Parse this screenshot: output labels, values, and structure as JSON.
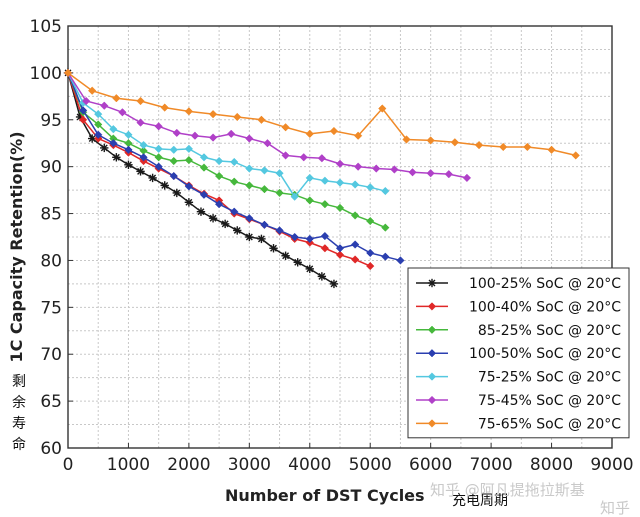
{
  "chart_data": {
    "type": "line",
    "title": "",
    "xlabel": "Number of DST Cycles",
    "ylabel": "1C Capacity Retention(%)",
    "xlim": [
      0,
      9000
    ],
    "ylim": [
      60,
      105
    ],
    "xticks": [
      0,
      1000,
      2000,
      3000,
      4000,
      5000,
      6000,
      7000,
      8000,
      9000
    ],
    "yticks": [
      60,
      65,
      70,
      75,
      80,
      85,
      90,
      95,
      100,
      105
    ],
    "grid": true,
    "legend_position": "lower-right",
    "series": [
      {
        "name": "100-25% SoC @ 20°C",
        "color": "#1a1a1a",
        "marker": "star",
        "x": [
          0,
          200,
          400,
          600,
          800,
          1000,
          1200,
          1400,
          1600,
          1800,
          2000,
          2200,
          2400,
          2600,
          2800,
          3000,
          3200,
          3400,
          3600,
          3800,
          4000,
          4200,
          4400
        ],
        "y": [
          100,
          95.3,
          93.0,
          92.0,
          91.0,
          90.2,
          89.5,
          88.8,
          88.0,
          87.2,
          86.2,
          85.2,
          84.5,
          83.9,
          83.2,
          82.5,
          82.3,
          81.3,
          80.5,
          79.8,
          79.1,
          78.3,
          77.5
        ]
      },
      {
        "name": "100-40% SoC @ 20°C",
        "color": "#e02828",
        "marker": "diamond",
        "x": [
          0,
          250,
          500,
          750,
          1000,
          1250,
          1500,
          1750,
          2000,
          2250,
          2500,
          2750,
          3000,
          3250,
          3500,
          3750,
          4000,
          4250,
          4500,
          4750,
          5000
        ],
        "y": [
          100,
          95.0,
          93.0,
          92.3,
          91.5,
          90.6,
          89.8,
          89.0,
          88.0,
          87.1,
          86.4,
          85.0,
          84.4,
          83.8,
          83.1,
          82.3,
          81.9,
          81.3,
          80.6,
          80.1,
          79.4
        ]
      },
      {
        "name": "85-25% SoC @ 20°C",
        "color": "#46b83c",
        "marker": "diamond",
        "x": [
          0,
          250,
          500,
          750,
          1000,
          1250,
          1500,
          1750,
          2000,
          2250,
          2500,
          2750,
          3000,
          3250,
          3500,
          3750,
          4000,
          4250,
          4500,
          4750,
          5000,
          5250
        ],
        "y": [
          100,
          95.8,
          94.5,
          93.0,
          92.5,
          91.7,
          91.0,
          90.6,
          90.7,
          89.9,
          89.0,
          88.4,
          88.0,
          87.6,
          87.2,
          87.0,
          86.4,
          86.0,
          85.6,
          84.8,
          84.2,
          83.5
        ]
      },
      {
        "name": "100-50% SoC @ 20°C",
        "color": "#2b3fb0",
        "marker": "diamond",
        "x": [
          0,
          250,
          500,
          750,
          1000,
          1250,
          1500,
          1750,
          2000,
          2250,
          2500,
          2750,
          3000,
          3250,
          3500,
          3750,
          4000,
          4250,
          4500,
          4750,
          5000,
          5250,
          5500
        ],
        "y": [
          100,
          96.0,
          93.4,
          92.5,
          91.8,
          91.0,
          90.0,
          89.0,
          87.9,
          87.0,
          86.0,
          85.2,
          84.5,
          83.8,
          83.2,
          82.5,
          82.3,
          82.6,
          81.3,
          81.7,
          80.8,
          80.4,
          80.0
        ]
      },
      {
        "name": "75-25% SoC @ 20°C",
        "color": "#54c8e0",
        "marker": "diamond",
        "x": [
          0,
          250,
          500,
          750,
          1000,
          1250,
          1500,
          1750,
          2000,
          2250,
          2500,
          2750,
          3000,
          3250,
          3500,
          3750,
          4000,
          4250,
          4500,
          4750,
          5000,
          5250
        ],
        "y": [
          100,
          96.8,
          95.6,
          94.0,
          93.4,
          92.3,
          91.9,
          91.8,
          91.9,
          91.0,
          90.6,
          90.5,
          89.8,
          89.6,
          89.3,
          86.8,
          88.8,
          88.5,
          88.3,
          88.1,
          87.8,
          87.4
        ]
      },
      {
        "name": "75-45% SoC @ 20°C",
        "color": "#b040c8",
        "marker": "diamond",
        "x": [
          0,
          300,
          600,
          900,
          1200,
          1500,
          1800,
          2100,
          2400,
          2700,
          3000,
          3300,
          3600,
          3900,
          4200,
          4500,
          4800,
          5100,
          5400,
          5700,
          6000,
          6300,
          6600
        ],
        "y": [
          100,
          97.0,
          96.5,
          95.8,
          94.7,
          94.3,
          93.6,
          93.3,
          93.1,
          93.5,
          93.0,
          92.5,
          91.2,
          91.0,
          90.9,
          90.3,
          90.0,
          89.8,
          89.7,
          89.4,
          89.3,
          89.2,
          88.8
        ]
      },
      {
        "name": "75-65% SoC @ 20°C",
        "color": "#f08a28",
        "marker": "diamond",
        "x": [
          0,
          400,
          800,
          1200,
          1600,
          2000,
          2400,
          2800,
          3200,
          3600,
          4000,
          4400,
          4800,
          5200,
          5600,
          6000,
          6400,
          6800,
          7200,
          7600,
          8000,
          8400
        ],
        "y": [
          100,
          98.1,
          97.3,
          97.0,
          96.3,
          95.9,
          95.6,
          95.3,
          95.0,
          94.2,
          93.5,
          93.8,
          93.3,
          96.2,
          92.9,
          92.8,
          92.6,
          92.3,
          92.1,
          92.1,
          91.8,
          91.2
        ]
      }
    ],
    "annotations": {
      "ylabel_cn": "剩余寿命",
      "xlabel_cn": "充电周期",
      "watermark": "知乎 @阿凡提拖拉斯基",
      "watermark_corner": "知乎"
    }
  }
}
